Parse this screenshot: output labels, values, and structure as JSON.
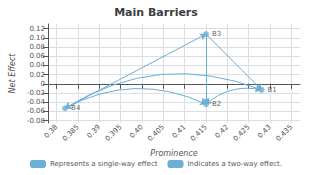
{
  "chart_data": {
    "type": "scatter",
    "title": "Main Barriers",
    "xlabel": "Prominence",
    "ylabel": "Net Effect",
    "x": [
      0.428,
      0.415,
      0.415,
      0.382
    ],
    "values": [
      -0.013,
      -0.044,
      0.108,
      -0.053
    ],
    "point_labels": [
      "B1",
      "B2",
      "B3",
      "B4"
    ],
    "color": "#6aafd4",
    "series": [
      {
        "name": "Represents a single-way effect",
        "line_style": "single-arrow",
        "connections": [
          [
            "B4",
            "B3"
          ],
          [
            "B3",
            "B1"
          ],
          [
            "B3",
            "B2"
          ]
        ]
      },
      {
        "name": "Indicates a two-way effect.",
        "line_style": "double-arrow",
        "connections": [
          [
            "B4",
            "B1"
          ],
          [
            "B4",
            "B2"
          ],
          [
            "B2",
            "B1"
          ]
        ]
      }
    ],
    "xlim": [
      0.378,
      0.437
    ],
    "xticks": [
      0.38,
      0.385,
      0.39,
      0.395,
      {
        "value": 0.4,
        "label": "0.40"
      },
      0.405,
      0.41,
      0.415,
      0.42,
      0.425,
      0.43,
      0.435
    ],
    "ylim": [
      -0.085,
      0.13
    ],
    "yticks": [
      -0.08,
      -0.06,
      -0.04,
      -0.02,
      0,
      0.02,
      0.04,
      0.06,
      0.08,
      {
        "value": 0.1,
        "label": "0.10"
      },
      0.12
    ],
    "grid": true,
    "legend": "bottom"
  }
}
